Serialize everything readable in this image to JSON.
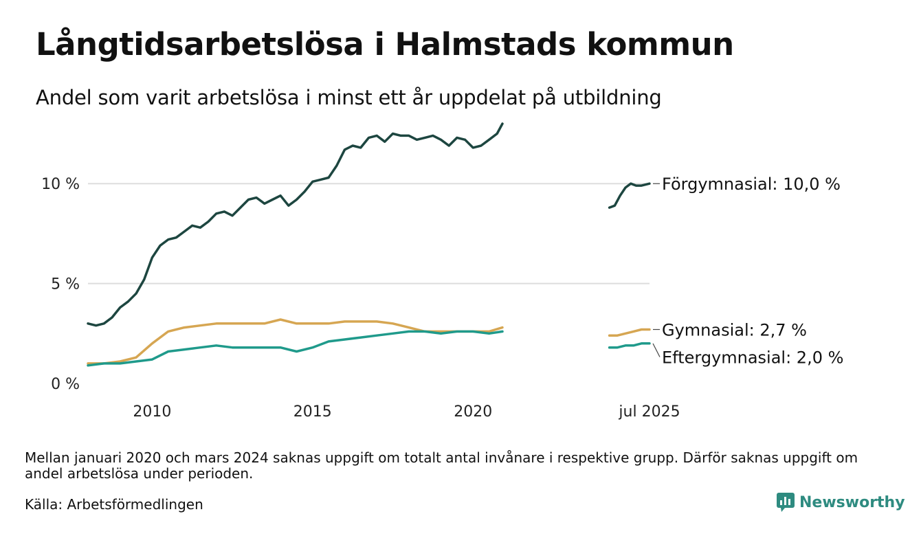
{
  "title": "Långtidsarbetslösa i Halmstads kommun",
  "subtitle": "Andel som varit arbetslösa i minst ett år uppdelat på utbildning",
  "footnote": "Mellan januari 2020 och mars 2024 saknas uppgift om totalt antal invånare i respektive grupp. Därför saknas uppgift om andel arbetslösa under perioden.",
  "source": "Källa: Arbetsförmedlingen",
  "brand": {
    "name": "Newsworthy",
    "icon": "newsworthy-logo-icon",
    "color": "#2e8b80"
  },
  "chart_data": {
    "type": "line",
    "title": "Långtidsarbetslösa i Halmstads kommun",
    "subtitle": "Andel som varit arbetslösa i minst ett år uppdelat på utbildning",
    "xlabel": "",
    "ylabel": "",
    "ylim": [
      0,
      13
    ],
    "xlim": [
      "2008-01",
      "2025-07"
    ],
    "y_ticks": [
      0,
      5,
      10
    ],
    "y_tick_labels": [
      "0 %",
      "5 %",
      "10 %"
    ],
    "x_ticks": [
      "2010-01",
      "2015-01",
      "2020-01",
      "2025-07"
    ],
    "x_tick_labels": [
      "2010",
      "2015",
      "2020",
      "jul 2025"
    ],
    "grid": "horizontal",
    "legend": "direct-labels-right",
    "series": [
      {
        "name": "Förgymnasial",
        "label": "Förgymnasial: 10,0 %",
        "color": "#1d4640",
        "segments": [
          {
            "x": [
              "2008-01",
              "2008-04",
              "2008-07",
              "2008-10",
              "2009-01",
              "2009-04",
              "2009-07",
              "2009-10",
              "2010-01",
              "2010-04",
              "2010-07",
              "2010-10",
              "2011-01",
              "2011-04",
              "2011-07",
              "2011-10",
              "2012-01",
              "2012-04",
              "2012-07",
              "2012-10",
              "2013-01",
              "2013-04",
              "2013-07",
              "2013-10",
              "2014-01",
              "2014-04",
              "2014-07",
              "2014-10",
              "2015-01",
              "2015-04",
              "2015-07",
              "2015-10",
              "2016-01",
              "2016-04",
              "2016-07",
              "2016-10",
              "2017-01",
              "2017-04",
              "2017-07",
              "2017-10",
              "2018-01",
              "2018-04",
              "2018-07",
              "2018-10",
              "2019-01",
              "2019-04",
              "2019-07",
              "2019-10",
              "2020-01",
              "2020-04",
              "2020-07",
              "2020-10",
              "2020-12"
            ],
            "values": [
              3.0,
              2.9,
              3.0,
              3.3,
              3.8,
              4.1,
              4.5,
              5.2,
              6.3,
              6.9,
              7.2,
              7.3,
              7.6,
              7.9,
              7.8,
              8.1,
              8.5,
              8.6,
              8.4,
              8.8,
              9.2,
              9.3,
              9.0,
              9.2,
              9.4,
              8.9,
              9.2,
              9.6,
              10.1,
              10.2,
              10.3,
              10.9,
              11.7,
              11.9,
              11.8,
              12.3,
              12.4,
              12.1,
              12.5,
              12.4,
              12.4,
              12.2,
              12.3,
              12.4,
              12.2,
              11.9,
              12.3,
              12.2,
              11.8,
              11.9,
              12.2,
              12.5,
              13.0
            ]
          },
          {
            "x": [
              "2024-04",
              "2024-06",
              "2024-08",
              "2024-10",
              "2024-12",
              "2025-02",
              "2025-04",
              "2025-07"
            ],
            "values": [
              8.8,
              8.9,
              9.4,
              9.8,
              10.0,
              9.9,
              9.9,
              10.0
            ]
          }
        ]
      },
      {
        "name": "Gymnasial",
        "label": "Gymnasial:  2,7 %",
        "color": "#d6a652",
        "segments": [
          {
            "x": [
              "2008-01",
              "2008-07",
              "2009-01",
              "2009-07",
              "2010-01",
              "2010-07",
              "2011-01",
              "2011-07",
              "2012-01",
              "2012-07",
              "2013-01",
              "2013-07",
              "2014-01",
              "2014-07",
              "2015-01",
              "2015-07",
              "2016-01",
              "2016-07",
              "2017-01",
              "2017-07",
              "2018-01",
              "2018-07",
              "2019-01",
              "2019-07",
              "2020-01",
              "2020-07",
              "2020-12"
            ],
            "values": [
              1.0,
              1.0,
              1.1,
              1.3,
              2.0,
              2.6,
              2.8,
              2.9,
              3.0,
              3.0,
              3.0,
              3.0,
              3.2,
              3.0,
              3.0,
              3.0,
              3.1,
              3.1,
              3.1,
              3.0,
              2.8,
              2.6,
              2.6,
              2.6,
              2.6,
              2.6,
              2.8
            ]
          },
          {
            "x": [
              "2024-04",
              "2024-07",
              "2024-10",
              "2025-01",
              "2025-04",
              "2025-07"
            ],
            "values": [
              2.4,
              2.4,
              2.5,
              2.6,
              2.7,
              2.7
            ]
          }
        ]
      },
      {
        "name": "Eftergymnasial",
        "label": "Eftergymnasial:  2,0 %",
        "color": "#1f9a8b",
        "segments": [
          {
            "x": [
              "2008-01",
              "2008-07",
              "2009-01",
              "2009-07",
              "2010-01",
              "2010-07",
              "2011-01",
              "2011-07",
              "2012-01",
              "2012-07",
              "2013-01",
              "2013-07",
              "2014-01",
              "2014-07",
              "2015-01",
              "2015-07",
              "2016-01",
              "2016-07",
              "2017-01",
              "2017-07",
              "2018-01",
              "2018-07",
              "2019-01",
              "2019-07",
              "2020-01",
              "2020-07",
              "2020-12"
            ],
            "values": [
              0.9,
              1.0,
              1.0,
              1.1,
              1.2,
              1.6,
              1.7,
              1.8,
              1.9,
              1.8,
              1.8,
              1.8,
              1.8,
              1.6,
              1.8,
              2.1,
              2.2,
              2.3,
              2.4,
              2.5,
              2.6,
              2.6,
              2.5,
              2.6,
              2.6,
              2.5,
              2.6
            ]
          },
          {
            "x": [
              "2024-04",
              "2024-07",
              "2024-10",
              "2025-01",
              "2025-04",
              "2025-07"
            ],
            "values": [
              1.8,
              1.8,
              1.9,
              1.9,
              2.0,
              2.0
            ]
          }
        ]
      }
    ]
  }
}
